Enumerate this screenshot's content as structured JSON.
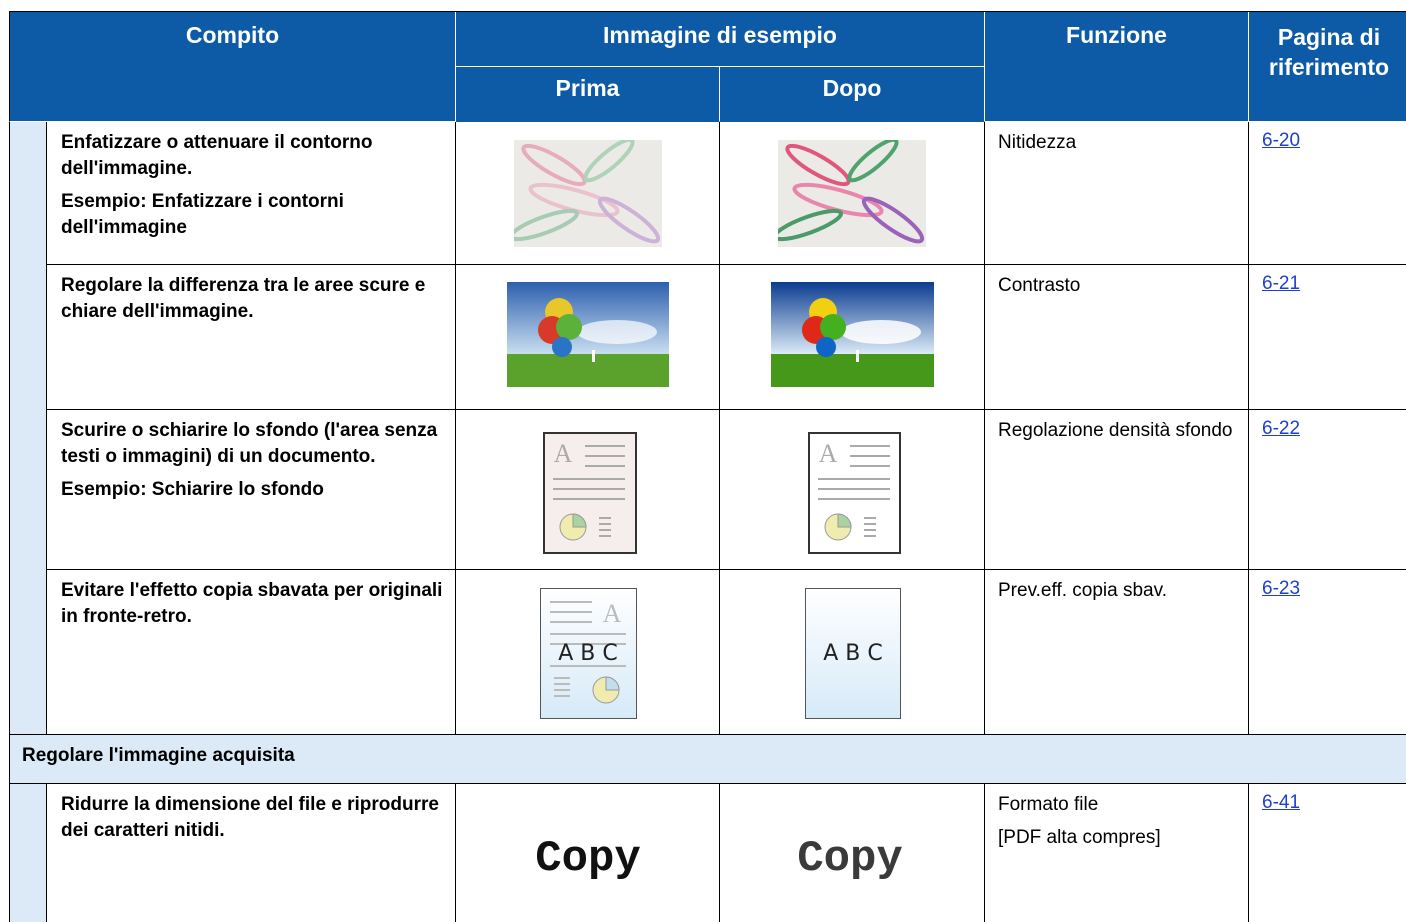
{
  "header": {
    "task": "Compito",
    "sample": "Immagine di esempio",
    "before": "Prima",
    "after": "Dopo",
    "function": "Funzione",
    "page": "Pagina di riferimento"
  },
  "rows": [
    {
      "task": [
        "Enfatizzare o attenuare il contorno dell'immagine.",
        "Esempio: Enfatizzare i contorni dell'immagine"
      ],
      "function": [
        "Nitidezza"
      ],
      "page": "6-20"
    },
    {
      "task": [
        "Regolare la differenza tra le aree scure e chiare dell'immagine."
      ],
      "function": [
        "Contrasto"
      ],
      "page": "6-21"
    },
    {
      "task": [
        "Scurire o schiarire lo sfondo (l'area senza testi o immagini) di un documento.",
        "Esempio: Schiarire lo sfondo"
      ],
      "function": [
        "Regolazione densità sfondo"
      ],
      "page": "6-22"
    },
    {
      "task": [
        "Evitare l'effetto copia sbavata per originali in fronte-retro."
      ],
      "function": [
        "Prev.eff. copia sbav."
      ],
      "page": "6-23"
    }
  ],
  "section": {
    "title": "Regolare l'immagine acquisita",
    "rows": [
      {
        "task": [
          "Ridurre la dimensione del file e riprodurre dei caratteri nitidi."
        ],
        "function": [
          "Formato file",
          "[PDF alta compres]"
        ],
        "page": "6-41"
      }
    ]
  },
  "sample_texts": {
    "glyph": "A",
    "letters": "A B C",
    "copy": "Copy"
  }
}
